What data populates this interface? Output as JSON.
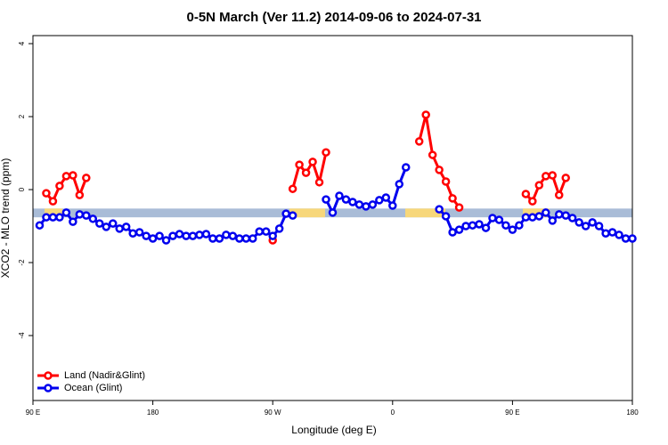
{
  "chart_data": {
    "type": "line",
    "title": "0-5N March (Ver 11.2)   2014-09-06 to 2024-07-31",
    "xlabel": "Longitude (deg E)",
    "ylabel": "XCO2 - MLO trend (ppm)",
    "xlim": [
      90,
      540
    ],
    "ylim": [
      -5.78,
      4.22
    ],
    "xticks": [
      {
        "value": 90,
        "label": "90 E"
      },
      180,
      {
        "value": 270,
        "label": "90 W"
      },
      {
        "value": 360,
        "label": "0"
      },
      {
        "value": 450,
        "label": "90 E"
      },
      {
        "value": 540,
        "label": "180"
      }
    ],
    "yticks": [
      -4,
      -2,
      0,
      2,
      4
    ],
    "legend": "bottom-left",
    "reference_band": {
      "range": [
        -0.76,
        -0.52
      ],
      "color": "#a9bcd7",
      "land_ranges": [
        [
          98.7,
          112
        ],
        [
          282.6,
          309.3
        ],
        [
          369.5,
          399.6
        ],
        [
          457.8,
          477.8
        ]
      ],
      "land_color": "#f7d77a"
    },
    "x": [
      95,
      100,
      105,
      110,
      115,
      120,
      125,
      130,
      135,
      140,
      145,
      150,
      155,
      160,
      165,
      170,
      175,
      180,
      185,
      190,
      195,
      200,
      205,
      210,
      215,
      220,
      225,
      230,
      235,
      240,
      245,
      250,
      255,
      260,
      265,
      270,
      275,
      280,
      285,
      290,
      295,
      300,
      305,
      310,
      315,
      320,
      325,
      330,
      335,
      340,
      345,
      350,
      355,
      360,
      365,
      370,
      375,
      380,
      385,
      390,
      395,
      400,
      405,
      410,
      415,
      420,
      425,
      430,
      435,
      440,
      445,
      450,
      455,
      460,
      465,
      470,
      475,
      480,
      485,
      490,
      495,
      500,
      505,
      510,
      515,
      520,
      525,
      530,
      535,
      540
    ],
    "series": [
      {
        "name": "Land (Nadir&Glint)",
        "color": "#ff0000",
        "values": [
          null,
          -0.1,
          -0.32,
          0.1,
          0.37,
          0.39,
          -0.15,
          0.32,
          null,
          null,
          null,
          null,
          null,
          null,
          null,
          null,
          null,
          null,
          null,
          null,
          null,
          null,
          null,
          null,
          null,
          null,
          null,
          null,
          null,
          null,
          null,
          null,
          null,
          null,
          null,
          -1.39,
          null,
          null,
          0.02,
          0.68,
          0.46,
          0.76,
          0.2,
          1.02,
          null,
          null,
          null,
          null,
          null,
          null,
          null,
          null,
          null,
          null,
          null,
          null,
          null,
          1.32,
          2.05,
          0.95,
          0.54,
          0.22,
          -0.24,
          -0.49,
          null,
          null,
          null,
          null,
          null,
          null,
          null,
          null,
          null,
          -0.12,
          -0.32,
          0.12,
          0.37,
          0.39,
          -0.15,
          0.32,
          null,
          null,
          null,
          null,
          null,
          null,
          null,
          null,
          null,
          null
        ]
      },
      {
        "name": "Ocean (Glint)",
        "color": "#0000ee",
        "values": [
          -0.98,
          -0.76,
          -0.76,
          -0.76,
          -0.63,
          -0.88,
          -0.68,
          -0.71,
          -0.8,
          -0.93,
          -1.02,
          -0.93,
          -1.07,
          -1.02,
          -1.2,
          -1.17,
          -1.27,
          -1.34,
          -1.27,
          -1.39,
          -1.27,
          -1.22,
          -1.27,
          -1.27,
          -1.24,
          -1.22,
          -1.34,
          -1.34,
          -1.24,
          -1.27,
          -1.34,
          -1.34,
          -1.34,
          -1.15,
          -1.15,
          -1.27,
          -1.07,
          -0.66,
          -0.71,
          null,
          null,
          null,
          null,
          -0.27,
          -0.63,
          -0.17,
          -0.27,
          -0.34,
          -0.41,
          -0.46,
          -0.41,
          -0.29,
          -0.22,
          -0.44,
          0.15,
          0.61,
          null,
          null,
          null,
          null,
          -0.54,
          -0.73,
          -1.17,
          -1.1,
          -1.0,
          -0.98,
          -0.95,
          -1.05,
          -0.78,
          -0.83,
          -0.98,
          -1.1,
          -0.98,
          -0.76,
          -0.76,
          -0.73,
          -0.63,
          -0.85,
          -0.68,
          -0.71,
          -0.78,
          -0.9,
          -1.0,
          -0.9,
          -1.0,
          -1.2,
          -1.17,
          -1.24,
          -1.34,
          -1.34
        ]
      }
    ]
  }
}
